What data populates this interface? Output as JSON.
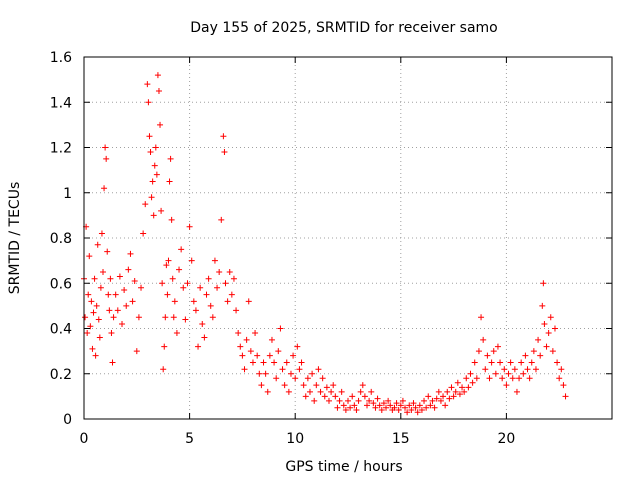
{
  "chart_data": {
    "type": "scatter",
    "title": "Day 155 of 2025, SRMTID for receiver samo",
    "xlabel": "GPS time / hours",
    "ylabel": "SRMTID / TECUs",
    "xlim": [
      0,
      25
    ],
    "ylim": [
      0,
      1.6
    ],
    "xticks": [
      0,
      5,
      10,
      15,
      20
    ],
    "xtick_labels": [
      "0",
      "5",
      "10",
      "15",
      "20"
    ],
    "yticks": [
      0,
      0.2,
      0.4,
      0.6,
      0.8,
      1.0,
      1.2,
      1.4,
      1.6
    ],
    "ytick_labels": [
      "0",
      "0.2",
      "0.4",
      "0.6",
      "0.8",
      "1",
      "1.2",
      "1.4",
      "1.6"
    ],
    "grid": true,
    "marker": "+",
    "marker_color": "#ff0000",
    "series": [
      {
        "name": "SRMTID",
        "x_start": 0.0,
        "x_end": 22.8,
        "points": [
          [
            0.0,
            0.62
          ],
          [
            0.05,
            0.45
          ],
          [
            0.1,
            0.85
          ],
          [
            0.15,
            0.38
          ],
          [
            0.2,
            0.55
          ],
          [
            0.25,
            0.72
          ],
          [
            0.3,
            0.41
          ],
          [
            0.35,
            0.52
          ],
          [
            0.4,
            0.31
          ],
          [
            0.45,
            0.47
          ],
          [
            0.5,
            0.62
          ],
          [
            0.55,
            0.28
          ],
          [
            0.6,
            0.5
          ],
          [
            0.65,
            0.77
          ],
          [
            0.7,
            0.44
          ],
          [
            0.75,
            0.36
          ],
          [
            0.8,
            0.58
          ],
          [
            0.85,
            0.82
          ],
          [
            0.9,
            0.65
          ],
          [
            0.95,
            1.02
          ],
          [
            1.0,
            1.2
          ],
          [
            1.05,
            1.15
          ],
          [
            1.1,
            0.74
          ],
          [
            1.15,
            0.55
          ],
          [
            1.2,
            0.48
          ],
          [
            1.25,
            0.62
          ],
          [
            1.3,
            0.38
          ],
          [
            1.35,
            0.25
          ],
          [
            1.4,
            0.45
          ],
          [
            1.5,
            0.55
          ],
          [
            1.6,
            0.48
          ],
          [
            1.7,
            0.63
          ],
          [
            1.8,
            0.42
          ],
          [
            1.9,
            0.57
          ],
          [
            2.0,
            0.5
          ],
          [
            2.1,
            0.66
          ],
          [
            2.2,
            0.73
          ],
          [
            2.3,
            0.52
          ],
          [
            2.4,
            0.61
          ],
          [
            2.5,
            0.3
          ],
          [
            2.6,
            0.45
          ],
          [
            2.7,
            0.58
          ],
          [
            2.8,
            0.82
          ],
          [
            2.9,
            0.95
          ],
          [
            3.0,
            1.48
          ],
          [
            3.05,
            1.4
          ],
          [
            3.1,
            1.25
          ],
          [
            3.15,
            1.18
          ],
          [
            3.2,
            0.98
          ],
          [
            3.25,
            1.05
          ],
          [
            3.3,
            0.9
          ],
          [
            3.35,
            1.12
          ],
          [
            3.4,
            1.2
          ],
          [
            3.45,
            1.08
          ],
          [
            3.5,
            1.52
          ],
          [
            3.55,
            1.45
          ],
          [
            3.6,
            1.3
          ],
          [
            3.65,
            0.92
          ],
          [
            3.7,
            0.6
          ],
          [
            3.75,
            0.22
          ],
          [
            3.8,
            0.32
          ],
          [
            3.85,
            0.45
          ],
          [
            3.9,
            0.68
          ],
          [
            3.95,
            0.55
          ],
          [
            4.0,
            0.7
          ],
          [
            4.05,
            1.05
          ],
          [
            4.1,
            1.15
          ],
          [
            4.15,
            0.88
          ],
          [
            4.2,
            0.62
          ],
          [
            4.25,
            0.45
          ],
          [
            4.3,
            0.52
          ],
          [
            4.4,
            0.38
          ],
          [
            4.5,
            0.66
          ],
          [
            4.6,
            0.75
          ],
          [
            4.7,
            0.58
          ],
          [
            4.8,
            0.44
          ],
          [
            4.9,
            0.6
          ],
          [
            5.0,
            0.85
          ],
          [
            5.1,
            0.7
          ],
          [
            5.2,
            0.52
          ],
          [
            5.3,
            0.48
          ],
          [
            5.4,
            0.32
          ],
          [
            5.5,
            0.58
          ],
          [
            5.6,
            0.42
          ],
          [
            5.7,
            0.36
          ],
          [
            5.8,
            0.55
          ],
          [
            5.9,
            0.62
          ],
          [
            6.0,
            0.5
          ],
          [
            6.1,
            0.45
          ],
          [
            6.2,
            0.7
          ],
          [
            6.3,
            0.58
          ],
          [
            6.4,
            0.65
          ],
          [
            6.5,
            0.88
          ],
          [
            6.6,
            1.25
          ],
          [
            6.65,
            1.18
          ],
          [
            6.7,
            0.6
          ],
          [
            6.8,
            0.52
          ],
          [
            6.9,
            0.65
          ],
          [
            7.0,
            0.55
          ],
          [
            7.1,
            0.62
          ],
          [
            7.2,
            0.48
          ],
          [
            7.3,
            0.38
          ],
          [
            7.4,
            0.32
          ],
          [
            7.5,
            0.28
          ],
          [
            7.6,
            0.22
          ],
          [
            7.7,
            0.35
          ],
          [
            7.8,
            0.52
          ],
          [
            7.9,
            0.3
          ],
          [
            8.0,
            0.25
          ],
          [
            8.1,
            0.38
          ],
          [
            8.2,
            0.28
          ],
          [
            8.3,
            0.2
          ],
          [
            8.4,
            0.15
          ],
          [
            8.5,
            0.25
          ],
          [
            8.6,
            0.2
          ],
          [
            8.7,
            0.12
          ],
          [
            8.8,
            0.28
          ],
          [
            8.9,
            0.35
          ],
          [
            9.0,
            0.25
          ],
          [
            9.1,
            0.18
          ],
          [
            9.2,
            0.3
          ],
          [
            9.3,
            0.4
          ],
          [
            9.4,
            0.22
          ],
          [
            9.5,
            0.15
          ],
          [
            9.6,
            0.25
          ],
          [
            9.7,
            0.12
          ],
          [
            9.8,
            0.2
          ],
          [
            9.9,
            0.28
          ],
          [
            10.0,
            0.18
          ],
          [
            10.1,
            0.32
          ],
          [
            10.2,
            0.22
          ],
          [
            10.3,
            0.25
          ],
          [
            10.4,
            0.15
          ],
          [
            10.5,
            0.1
          ],
          [
            10.6,
            0.18
          ],
          [
            10.7,
            0.12
          ],
          [
            10.8,
            0.2
          ],
          [
            10.9,
            0.08
          ],
          [
            11.0,
            0.15
          ],
          [
            11.1,
            0.22
          ],
          [
            11.2,
            0.12
          ],
          [
            11.3,
            0.18
          ],
          [
            11.4,
            0.1
          ],
          [
            11.5,
            0.14
          ],
          [
            11.6,
            0.08
          ],
          [
            11.7,
            0.12
          ],
          [
            11.8,
            0.15
          ],
          [
            11.9,
            0.1
          ],
          [
            12.0,
            0.05
          ],
          [
            12.1,
            0.08
          ],
          [
            12.2,
            0.12
          ],
          [
            12.3,
            0.06
          ],
          [
            12.4,
            0.04
          ],
          [
            12.5,
            0.08
          ],
          [
            12.6,
            0.05
          ],
          [
            12.7,
            0.1
          ],
          [
            12.8,
            0.06
          ],
          [
            12.9,
            0.04
          ],
          [
            13.0,
            0.08
          ],
          [
            13.1,
            0.12
          ],
          [
            13.2,
            0.15
          ],
          [
            13.3,
            0.1
          ],
          [
            13.4,
            0.06
          ],
          [
            13.5,
            0.08
          ],
          [
            13.6,
            0.12
          ],
          [
            13.7,
            0.07
          ],
          [
            13.8,
            0.05
          ],
          [
            13.9,
            0.09
          ],
          [
            14.0,
            0.06
          ],
          [
            14.1,
            0.04
          ],
          [
            14.2,
            0.07
          ],
          [
            14.3,
            0.05
          ],
          [
            14.4,
            0.08
          ],
          [
            14.5,
            0.06
          ],
          [
            14.6,
            0.04
          ],
          [
            14.7,
            0.05
          ],
          [
            14.8,
            0.07
          ],
          [
            14.9,
            0.04
          ],
          [
            15.0,
            0.06
          ],
          [
            15.1,
            0.08
          ],
          [
            15.2,
            0.05
          ],
          [
            15.3,
            0.03
          ],
          [
            15.4,
            0.06
          ],
          [
            15.5,
            0.04
          ],
          [
            15.6,
            0.07
          ],
          [
            15.7,
            0.05
          ],
          [
            15.8,
            0.03
          ],
          [
            15.9,
            0.06
          ],
          [
            16.0,
            0.04
          ],
          [
            16.1,
            0.08
          ],
          [
            16.2,
            0.05
          ],
          [
            16.3,
            0.1
          ],
          [
            16.4,
            0.06
          ],
          [
            16.5,
            0.08
          ],
          [
            16.6,
            0.05
          ],
          [
            16.7,
            0.09
          ],
          [
            16.8,
            0.12
          ],
          [
            16.9,
            0.08
          ],
          [
            17.0,
            0.1
          ],
          [
            17.1,
            0.06
          ],
          [
            17.2,
            0.12
          ],
          [
            17.3,
            0.09
          ],
          [
            17.4,
            0.14
          ],
          [
            17.5,
            0.1
          ],
          [
            17.6,
            0.12
          ],
          [
            17.7,
            0.16
          ],
          [
            17.8,
            0.11
          ],
          [
            17.9,
            0.14
          ],
          [
            18.0,
            0.12
          ],
          [
            18.1,
            0.18
          ],
          [
            18.2,
            0.14
          ],
          [
            18.3,
            0.2
          ],
          [
            18.4,
            0.16
          ],
          [
            18.5,
            0.25
          ],
          [
            18.6,
            0.18
          ],
          [
            18.7,
            0.3
          ],
          [
            18.8,
            0.45
          ],
          [
            18.9,
            0.35
          ],
          [
            19.0,
            0.22
          ],
          [
            19.1,
            0.28
          ],
          [
            19.2,
            0.18
          ],
          [
            19.3,
            0.25
          ],
          [
            19.4,
            0.3
          ],
          [
            19.5,
            0.2
          ],
          [
            19.6,
            0.32
          ],
          [
            19.7,
            0.25
          ],
          [
            19.8,
            0.18
          ],
          [
            19.9,
            0.22
          ],
          [
            20.0,
            0.15
          ],
          [
            20.1,
            0.2
          ],
          [
            20.2,
            0.25
          ],
          [
            20.3,
            0.18
          ],
          [
            20.4,
            0.22
          ],
          [
            20.5,
            0.12
          ],
          [
            20.6,
            0.18
          ],
          [
            20.7,
            0.25
          ],
          [
            20.8,
            0.2
          ],
          [
            20.9,
            0.28
          ],
          [
            21.0,
            0.22
          ],
          [
            21.1,
            0.18
          ],
          [
            21.2,
            0.25
          ],
          [
            21.3,
            0.3
          ],
          [
            21.4,
            0.22
          ],
          [
            21.5,
            0.35
          ],
          [
            21.6,
            0.28
          ],
          [
            21.7,
            0.5
          ],
          [
            21.75,
            0.6
          ],
          [
            21.8,
            0.42
          ],
          [
            21.9,
            0.32
          ],
          [
            22.0,
            0.38
          ],
          [
            22.1,
            0.45
          ],
          [
            22.2,
            0.3
          ],
          [
            22.3,
            0.4
          ],
          [
            22.4,
            0.25
          ],
          [
            22.5,
            0.18
          ],
          [
            22.6,
            0.22
          ],
          [
            22.7,
            0.15
          ],
          [
            22.8,
            0.1
          ]
        ]
      }
    ]
  }
}
